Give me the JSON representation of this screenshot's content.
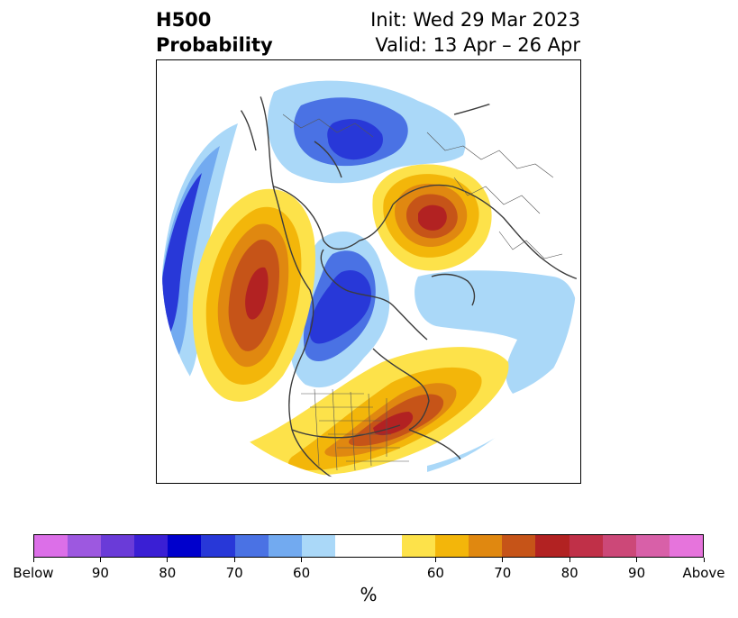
{
  "title": {
    "line1": "H500",
    "line2": "Probability"
  },
  "subtitle": {
    "init": "Init: Wed 29 Mar 2023",
    "valid": "Valid: 13 Apr – 26 Apr"
  },
  "colorbar": {
    "colors": [
      "#dc6fe8",
      "#9d58e0",
      "#6a3bd8",
      "#3a1fd4",
      "#0000cc",
      "#2838d8",
      "#4a72e4",
      "#72aaf0",
      "#aad8f8",
      "#ffffff",
      "#ffffff",
      "#fde24a",
      "#f3b60a",
      "#e08810",
      "#c65418",
      "#b22222",
      "#c03048",
      "#cc4878",
      "#d860a8",
      "#e674dc"
    ],
    "tick_labels": [
      "Below",
      "90",
      "80",
      "70",
      "60",
      "60",
      "70",
      "80",
      "90",
      "Above"
    ],
    "unit": "%"
  },
  "legend_colors": {
    "below_strong": "#1e2fd6",
    "below_mid": "#4a72e4",
    "below_light": "#aad8f8",
    "above_light": "#fde24a",
    "above_mid": "#f3b60a",
    "above_orange": "#e08810",
    "above_strong": "#c65418",
    "above_max": "#b22222"
  }
}
